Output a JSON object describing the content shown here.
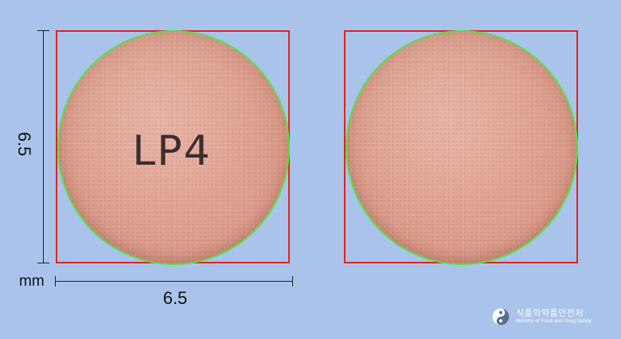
{
  "pill_front": {
    "imprint": "LP4"
  },
  "dimensions": {
    "height_label": "6.5",
    "width_label": "6.5",
    "unit": "mm"
  },
  "logo": {
    "korean": "식품의약품안전처",
    "english": "Ministry of Food and Drug Safety"
  },
  "colors": {
    "background": "#a9c3eb",
    "frame": "#e0241f",
    "outline": "#54e23c",
    "pill": "#dea08f"
  }
}
